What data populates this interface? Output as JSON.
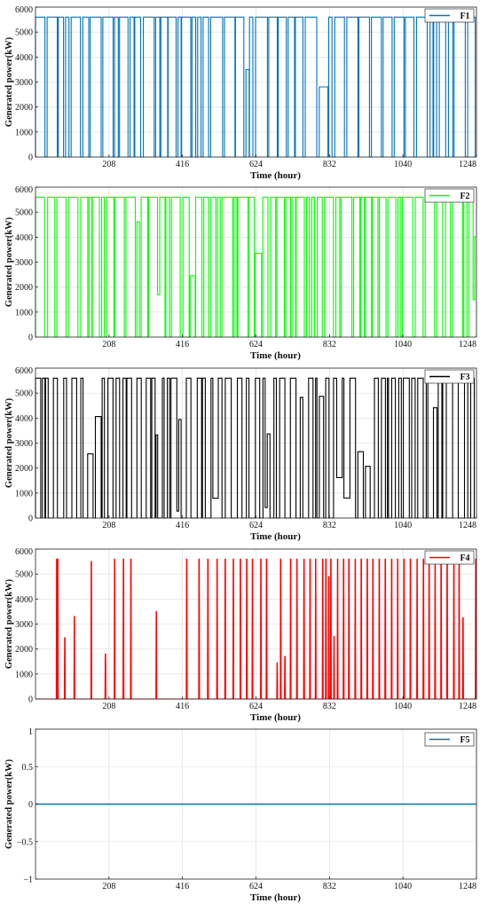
{
  "chart_data": [
    {
      "type": "line",
      "xlabel": "Time (hour)",
      "ylabel": "Generated power(kW)",
      "xlim": [
        0,
        1248
      ],
      "ylim": [
        0,
        6000
      ],
      "xticks": [
        208,
        416,
        624,
        832,
        1040,
        1248
      ],
      "yticks": [
        0,
        1000,
        2000,
        3000,
        4000,
        5000,
        6000
      ],
      "grid": true,
      "legend_position": "top-right",
      "series": [
        {
          "name": "F1",
          "color": "#0072BD",
          "max_value": 5600,
          "min_value": 0,
          "pattern": "mostly on, frequent switching"
        }
      ]
    },
    {
      "type": "line",
      "xlabel": "Time (hour)",
      "ylabel": "Generated power(kW)",
      "xlim": [
        0,
        1248
      ],
      "ylim": [
        0,
        6000
      ],
      "xticks": [
        208,
        416,
        624,
        832,
        1040,
        1248
      ],
      "yticks": [
        0,
        1000,
        2000,
        3000,
        4000,
        5000,
        6000
      ],
      "grid": true,
      "legend_position": "top-right",
      "series": [
        {
          "name": "F2",
          "color": "#00FF00",
          "max_value": 5600,
          "min_value": 0,
          "pattern": "mostly on, frequent switching"
        }
      ]
    },
    {
      "type": "line",
      "xlabel": "Time (hour)",
      "ylabel": "Generated power(kW)",
      "xlim": [
        0,
        1248
      ],
      "ylim": [
        0,
        6000
      ],
      "xticks": [
        208,
        416,
        624,
        832,
        1040,
        1248
      ],
      "yticks": [
        0,
        1000,
        2000,
        3000,
        4000,
        5000,
        6000
      ],
      "grid": true,
      "legend_position": "top-right",
      "series": [
        {
          "name": "F3",
          "color": "#000000",
          "max_value": 5600,
          "min_value": 0,
          "pattern": "intermittent switching"
        }
      ]
    },
    {
      "type": "line",
      "xlabel": "Time (hour)",
      "ylabel": "Generated power(kW)",
      "xlim": [
        0,
        1248
      ],
      "ylim": [
        0,
        6000
      ],
      "xticks": [
        208,
        416,
        624,
        832,
        1040,
        1248
      ],
      "yticks": [
        0,
        1000,
        2000,
        3000,
        4000,
        5000,
        6000
      ],
      "grid": true,
      "legend_position": "top-right",
      "series": [
        {
          "name": "F4",
          "color": "#FF0000",
          "max_value": 5600,
          "min_value": 0,
          "pattern": "sparse peaks",
          "peaks": [
            [
              60,
              5600
            ],
            [
              63,
              5600
            ],
            [
              83,
              2450
            ],
            [
              110,
              3300
            ],
            [
              158,
              5500
            ],
            [
              198,
              1800
            ],
            [
              224,
              5600
            ],
            [
              249,
              5600
            ],
            [
              270,
              5600
            ],
            [
              342,
              3500
            ],
            [
              428,
              5600
            ],
            [
              463,
              5600
            ],
            [
              488,
              5600
            ],
            [
              514,
              5600
            ],
            [
              537,
              5600
            ],
            [
              560,
              5600
            ],
            [
              580,
              5600
            ],
            [
              598,
              5600
            ],
            [
              614,
              5600
            ],
            [
              638,
              5600
            ],
            [
              654,
              5600
            ],
            [
              684,
              1450
            ],
            [
              694,
              5600
            ],
            [
              706,
              1700
            ],
            [
              722,
              5600
            ],
            [
              740,
              5600
            ],
            [
              760,
              5600
            ],
            [
              777,
              5600
            ],
            [
              793,
              5600
            ],
            [
              813,
              5600
            ],
            [
              822,
              5600
            ],
            [
              830,
              4900
            ],
            [
              836,
              5600
            ],
            [
              845,
              2500
            ],
            [
              855,
              5600
            ],
            [
              872,
              5600
            ],
            [
              887,
              5600
            ],
            [
              905,
              5600
            ],
            [
              922,
              5600
            ],
            [
              939,
              5600
            ],
            [
              955,
              5600
            ],
            [
              973,
              5600
            ],
            [
              990,
              5600
            ],
            [
              1008,
              5600
            ],
            [
              1025,
              5600
            ],
            [
              1043,
              5600
            ],
            [
              1061,
              5600
            ],
            [
              1080,
              5600
            ],
            [
              1098,
              5600
            ],
            [
              1114,
              5600
            ],
            [
              1131,
              5600
            ],
            [
              1148,
              5600
            ],
            [
              1165,
              5600
            ],
            [
              1184,
              5600
            ],
            [
              1199,
              5600
            ],
            [
              1210,
              3250
            ],
            [
              1246,
              5600
            ]
          ]
        }
      ]
    },
    {
      "type": "line",
      "xlabel": "Time (hour)",
      "ylabel": "Generated power(kW)",
      "xlim": [
        0,
        1248
      ],
      "ylim": [
        -1,
        1
      ],
      "xticks": [
        208,
        416,
        624,
        832,
        1040,
        1248
      ],
      "yticks": [
        -1,
        -0.5,
        0,
        0.5,
        1
      ],
      "grid": true,
      "legend_position": "top-right",
      "series": [
        {
          "name": "F5",
          "color": "#0072BD",
          "x": [
            0,
            1248
          ],
          "y": [
            0,
            0
          ]
        }
      ]
    }
  ]
}
